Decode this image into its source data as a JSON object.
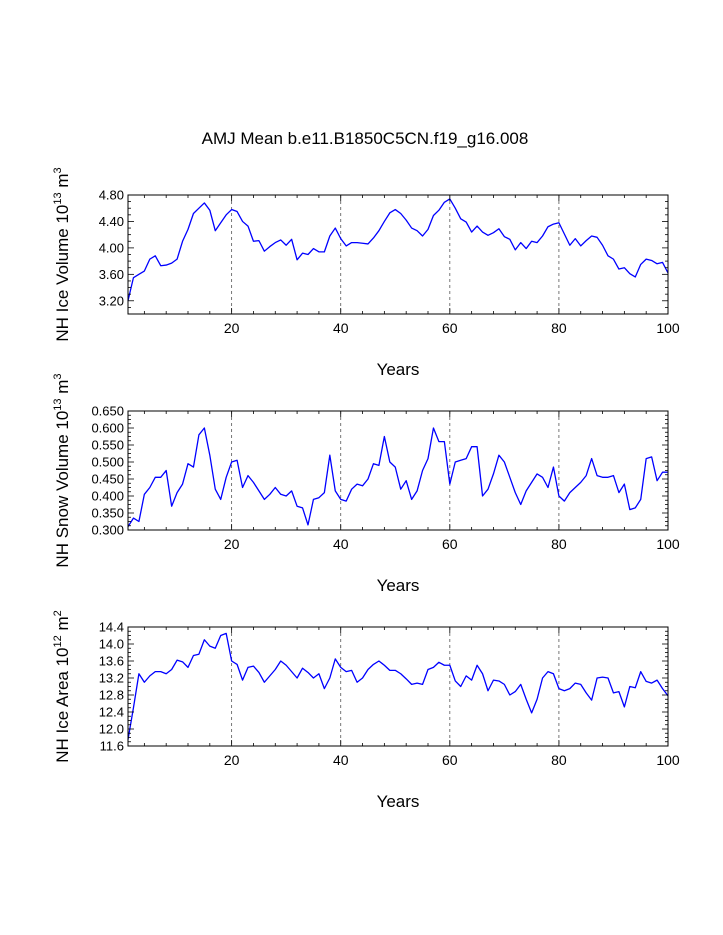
{
  "title": "AMJ Mean b.e11.B1850C5CN.f19_g16.008",
  "colors": {
    "line": "#0000ff",
    "axis": "#000000",
    "grid": "#555555"
  },
  "chart_data": [
    {
      "type": "line",
      "xlabel": "Years",
      "ylabel": {
        "base": "NH Ice Volume 10",
        "exp": "13",
        "unit": " m",
        "unitexp": "3"
      },
      "xlim": [
        1,
        100
      ],
      "ylim": [
        3.0,
        4.8
      ],
      "xticks": [
        20,
        40,
        60,
        80,
        100
      ],
      "yticks": [
        3.2,
        3.6,
        4.0,
        4.4,
        4.8
      ],
      "ytick_labels": [
        "3.20",
        "3.60",
        "4.00",
        "4.40",
        "4.80"
      ],
      "grid": "vertical dashed at 20, 40, 60, 80",
      "series": [
        {
          "name": "NH Ice Volume",
          "x": [
            1,
            2,
            3,
            4,
            5,
            6,
            7,
            8,
            9,
            10,
            11,
            12,
            13,
            14,
            15,
            16,
            17,
            18,
            19,
            20,
            21,
            22,
            23,
            24,
            25,
            26,
            27,
            28,
            29,
            30,
            31,
            32,
            33,
            34,
            35,
            36,
            37,
            38,
            39,
            40,
            41,
            42,
            43,
            44,
            45,
            46,
            47,
            48,
            49,
            50,
            51,
            52,
            53,
            54,
            55,
            56,
            57,
            58,
            59,
            60,
            61,
            62,
            63,
            64,
            65,
            66,
            67,
            68,
            69,
            70,
            71,
            72,
            73,
            74,
            75,
            76,
            77,
            78,
            79,
            80,
            81,
            82,
            83,
            84,
            85,
            86,
            87,
            88,
            89,
            90,
            91,
            92,
            93,
            94,
            95,
            96,
            97,
            98,
            99,
            100
          ],
          "values": [
            3.2,
            3.55,
            3.6,
            3.65,
            3.83,
            3.88,
            3.73,
            3.74,
            3.77,
            3.83,
            4.1,
            4.28,
            4.52,
            4.6,
            4.68,
            4.57,
            4.26,
            4.38,
            4.5,
            4.58,
            4.55,
            4.4,
            4.33,
            4.1,
            4.11,
            3.95,
            4.02,
            4.08,
            4.12,
            4.04,
            4.13,
            3.82,
            3.92,
            3.9,
            3.99,
            3.94,
            3.94,
            4.18,
            4.3,
            4.14,
            4.03,
            4.08,
            4.08,
            4.07,
            4.06,
            4.15,
            4.26,
            4.4,
            4.53,
            4.58,
            4.52,
            4.42,
            4.3,
            4.26,
            4.18,
            4.28,
            4.49,
            4.57,
            4.69,
            4.74,
            4.6,
            4.44,
            4.39,
            4.24,
            4.33,
            4.24,
            4.19,
            4.23,
            4.29,
            4.17,
            4.13,
            3.97,
            4.08,
            3.99,
            4.1,
            4.08,
            4.18,
            4.32,
            4.36,
            4.38,
            4.21,
            4.04,
            4.14,
            4.03,
            4.11,
            4.18,
            4.16,
            4.04,
            3.88,
            3.83,
            3.68,
            3.7,
            3.61,
            3.56,
            3.75,
            3.83,
            3.81,
            3.76,
            3.78,
            3.62
          ]
        }
      ]
    },
    {
      "type": "line",
      "xlabel": "Years",
      "ylabel": {
        "base": "NH Snow Volume 10",
        "exp": "13",
        "unit": " m",
        "unitexp": "3"
      },
      "xlim": [
        1,
        100
      ],
      "ylim": [
        0.3,
        0.65
      ],
      "xticks": [
        20,
        40,
        60,
        80,
        100
      ],
      "yticks": [
        0.3,
        0.35,
        0.4,
        0.45,
        0.5,
        0.55,
        0.6,
        0.65
      ],
      "ytick_labels": [
        "0.300",
        "0.350",
        "0.400",
        "0.450",
        "0.500",
        "0.550",
        "0.600",
        "0.650"
      ],
      "grid": "vertical dashed at 20, 40, 60, 80",
      "series": [
        {
          "name": "NH Snow Volume",
          "x": [
            1,
            2,
            3,
            4,
            5,
            6,
            7,
            8,
            9,
            10,
            11,
            12,
            13,
            14,
            15,
            16,
            17,
            18,
            19,
            20,
            21,
            22,
            23,
            24,
            25,
            26,
            27,
            28,
            29,
            30,
            31,
            32,
            33,
            34,
            35,
            36,
            37,
            38,
            39,
            40,
            41,
            42,
            43,
            44,
            45,
            46,
            47,
            48,
            49,
            50,
            51,
            52,
            53,
            54,
            55,
            56,
            57,
            58,
            59,
            60,
            61,
            62,
            63,
            64,
            65,
            66,
            67,
            68,
            69,
            70,
            71,
            72,
            73,
            74,
            75,
            76,
            77,
            78,
            79,
            80,
            81,
            82,
            83,
            84,
            85,
            86,
            87,
            88,
            89,
            90,
            91,
            92,
            93,
            94,
            95,
            96,
            97,
            98,
            99,
            100
          ],
          "values": [
            0.31,
            0.335,
            0.325,
            0.405,
            0.425,
            0.455,
            0.455,
            0.475,
            0.37,
            0.41,
            0.435,
            0.495,
            0.485,
            0.58,
            0.6,
            0.52,
            0.42,
            0.39,
            0.455,
            0.5,
            0.505,
            0.425,
            0.46,
            0.44,
            0.415,
            0.39,
            0.405,
            0.425,
            0.405,
            0.4,
            0.415,
            0.37,
            0.365,
            0.315,
            0.39,
            0.395,
            0.41,
            0.52,
            0.415,
            0.39,
            0.385,
            0.42,
            0.435,
            0.43,
            0.45,
            0.495,
            0.49,
            0.575,
            0.5,
            0.485,
            0.42,
            0.445,
            0.39,
            0.415,
            0.475,
            0.51,
            0.6,
            0.56,
            0.56,
            0.435,
            0.5,
            0.505,
            0.51,
            0.545,
            0.545,
            0.4,
            0.42,
            0.465,
            0.52,
            0.5,
            0.455,
            0.41,
            0.375,
            0.415,
            0.44,
            0.465,
            0.455,
            0.425,
            0.485,
            0.4,
            0.385,
            0.41,
            0.425,
            0.44,
            0.46,
            0.51,
            0.46,
            0.455,
            0.455,
            0.46,
            0.41,
            0.435,
            0.36,
            0.365,
            0.39,
            0.51,
            0.515,
            0.445,
            0.47,
            0.47
          ]
        }
      ]
    },
    {
      "type": "line",
      "xlabel": "Years",
      "ylabel": {
        "base": "NH Ice Area 10",
        "exp": "12",
        "unit": " m",
        "unitexp": "2"
      },
      "xlim": [
        1,
        100
      ],
      "ylim": [
        11.6,
        14.4
      ],
      "xticks": [
        20,
        40,
        60,
        80,
        100
      ],
      "yticks": [
        11.6,
        12.0,
        12.4,
        12.8,
        13.2,
        13.6,
        14.0,
        14.4
      ],
      "ytick_labels": [
        "11.6",
        "12.0",
        "12.4",
        "12.8",
        "13.2",
        "13.6",
        "14.0",
        "14.4"
      ],
      "grid": "vertical dashed at 20, 40, 60, 80",
      "series": [
        {
          "name": "NH Ice Area",
          "x": [
            1,
            2,
            3,
            4,
            5,
            6,
            7,
            8,
            9,
            10,
            11,
            12,
            13,
            14,
            15,
            16,
            17,
            18,
            19,
            20,
            21,
            22,
            23,
            24,
            25,
            26,
            27,
            28,
            29,
            30,
            31,
            32,
            33,
            34,
            35,
            36,
            37,
            38,
            39,
            40,
            41,
            42,
            43,
            44,
            45,
            46,
            47,
            48,
            49,
            50,
            51,
            52,
            53,
            54,
            55,
            56,
            57,
            58,
            59,
            60,
            61,
            62,
            63,
            64,
            65,
            66,
            67,
            68,
            69,
            70,
            71,
            72,
            73,
            74,
            75,
            76,
            77,
            78,
            79,
            80,
            81,
            82,
            83,
            84,
            85,
            86,
            87,
            88,
            89,
            90,
            91,
            92,
            93,
            94,
            95,
            96,
            97,
            98,
            99,
            100
          ],
          "values": [
            11.75,
            12.5,
            13.3,
            13.1,
            13.25,
            13.35,
            13.35,
            13.3,
            13.4,
            13.62,
            13.58,
            13.45,
            13.73,
            13.76,
            14.1,
            13.95,
            13.9,
            14.2,
            14.25,
            13.6,
            13.52,
            13.15,
            13.45,
            13.48,
            13.33,
            13.1,
            13.25,
            13.4,
            13.6,
            13.5,
            13.35,
            13.2,
            13.43,
            13.33,
            13.2,
            13.3,
            12.95,
            13.2,
            13.65,
            13.45,
            13.35,
            13.38,
            13.1,
            13.2,
            13.4,
            13.52,
            13.6,
            13.5,
            13.38,
            13.38,
            13.3,
            13.18,
            13.05,
            13.08,
            13.05,
            13.4,
            13.45,
            13.57,
            13.5,
            13.5,
            13.13,
            13.0,
            13.25,
            13.15,
            13.5,
            13.3,
            12.9,
            13.15,
            13.13,
            13.05,
            12.8,
            12.88,
            13.05,
            12.7,
            12.38,
            12.7,
            13.2,
            13.35,
            13.3,
            12.95,
            12.9,
            12.95,
            13.08,
            13.05,
            12.85,
            12.68,
            13.2,
            13.22,
            13.2,
            12.85,
            12.88,
            12.52,
            13.0,
            12.97,
            13.35,
            13.12,
            13.08,
            13.15,
            12.95,
            12.78
          ]
        }
      ]
    }
  ]
}
